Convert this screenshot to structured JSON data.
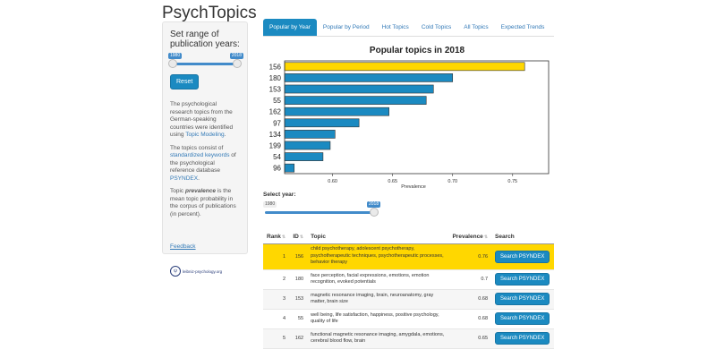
{
  "app": {
    "title": "PsychTopics"
  },
  "sidebar": {
    "heading": "Set range of publication years:",
    "slider": {
      "min_label": "1980",
      "max_label": "2018"
    },
    "reset_label": "Reset",
    "para1": {
      "text": "The psychological research topics from the German-speaking countries were identified using ",
      "link": "Topic Modeling",
      "suffix": "."
    },
    "para2": {
      "text": "The topics consist of ",
      "link": "standardized keywords",
      "suffix": " of the psychological reference database ",
      "link2": "PSYNDEX",
      "suffix2": "."
    },
    "para3": {
      "pre": "Topic ",
      "em": "prevalence",
      "post": " is the mean topic probability in the corpus of publications (in percent)."
    },
    "feedback": "Feedback",
    "logo": {
      "mark": "ψ",
      "text": "leibniz-psychology.org"
    }
  },
  "tabs": [
    {
      "label": "Popular by Year",
      "active": true
    },
    {
      "label": "Popular by Period",
      "active": false
    },
    {
      "label": "Hot Topics",
      "active": false
    },
    {
      "label": "Cold Topics",
      "active": false
    },
    {
      "label": "All Topics",
      "active": false
    },
    {
      "label": "Expected Trends",
      "active": false
    }
  ],
  "chart_data": {
    "type": "bar",
    "orientation": "horizontal",
    "title": "Popular topics in 2018",
    "xlabel": "Prevalence",
    "ylabel": "",
    "categories": [
      "156",
      "180",
      "153",
      "55",
      "162",
      "97",
      "134",
      "199",
      "54",
      "96"
    ],
    "values": [
      0.76,
      0.7,
      0.684,
      0.678,
      0.647,
      0.622,
      0.602,
      0.598,
      0.592,
      0.568
    ],
    "xlim": [
      0.56,
      0.78
    ],
    "xticks": [
      "0.60",
      "0.65",
      "0.70",
      "0.75"
    ],
    "xtick_values": [
      0.6,
      0.65,
      0.7,
      0.75
    ],
    "highlight_index": 0,
    "colors": {
      "bar": "#1b8ac1",
      "highlight": "#ffd700",
      "border": "#333333"
    },
    "grid": false
  },
  "year_slider": {
    "label": "Select year:",
    "min_label": "1980",
    "value_label": "2018",
    "fraction": 1.0
  },
  "table": {
    "headers": {
      "rank": "Rank",
      "id": "ID",
      "topic": "Topic",
      "prevalence": "Prevalence",
      "search": "Search"
    },
    "rows": [
      {
        "rank": "1",
        "id": "156",
        "topic": "child psychotherapy, adolescent psychotherapy, psychotherapeutic techniques, psychotherapeutic processes, behavior therapy",
        "prevalence": "0.76",
        "button": "Search PSYNDEX",
        "highlight": true
      },
      {
        "rank": "2",
        "id": "180",
        "topic": "face perception, facial expressions, emotions, emotion recognition, evoked potentials",
        "prevalence": "0.7",
        "button": "Search PSYNDEX",
        "highlight": false
      },
      {
        "rank": "3",
        "id": "153",
        "topic": "magnetic resonance imaging, brain, neuroanatomy, gray matter, brain size",
        "prevalence": "0.68",
        "button": "Search PSYNDEX",
        "highlight": false
      },
      {
        "rank": "4",
        "id": "55",
        "topic": "well being, life satisfaction, happiness, positive psychology, quality of life",
        "prevalence": "0.68",
        "button": "Search PSYNDEX",
        "highlight": false
      },
      {
        "rank": "5",
        "id": "162",
        "topic": "functional magnetic resonance imaging, amygdala, emotions, cerebral blood flow, brain",
        "prevalence": "0.65",
        "button": "Search PSYNDEX",
        "highlight": false
      }
    ]
  }
}
